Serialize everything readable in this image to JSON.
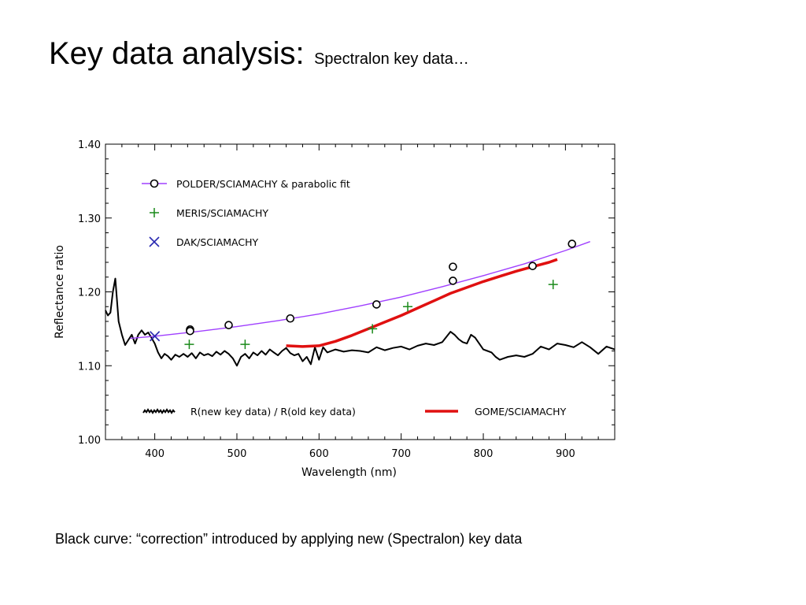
{
  "slide": {
    "title": "Key data analysis:",
    "subtitle": "Spectralon key data…",
    "caption": "Black curve: “correction” introduced by applying new (Spectralon) key data"
  },
  "chart_data": {
    "type": "scatter",
    "xlabel": "Wavelength (nm)",
    "ylabel": "Reflectance ratio",
    "xlim": [
      340,
      960
    ],
    "ylim": [
      1.0,
      1.4
    ],
    "x_ticks": [
      400,
      500,
      600,
      700,
      800,
      900
    ],
    "x_tick_labels": [
      "400",
      "500",
      "600",
      "700",
      "800",
      "900"
    ],
    "y_ticks": [
      1.0,
      1.1,
      1.2,
      1.3,
      1.4
    ],
    "y_tick_labels": [
      "1.00",
      "1.10",
      "1.20",
      "1.30",
      "1.40"
    ],
    "grid": false,
    "legend_position": "top-left and bottom",
    "series": [
      {
        "name": "POLDER/SCIAMACHY & parabolic fit",
        "kind": "points",
        "marker": "circle",
        "color": "#000000",
        "x": [
          443,
          443,
          490,
          565,
          670,
          763,
          763,
          860,
          908
        ],
        "y": [
          1.149,
          1.147,
          1.155,
          1.164,
          1.183,
          1.234,
          1.215,
          1.235,
          1.265
        ]
      },
      {
        "name": "POLDER/SCIAMACHY & parabolic fit",
        "kind": "fit-line",
        "color": "#a040ff",
        "x": [
          370,
          400,
          450,
          500,
          550,
          600,
          650,
          700,
          750,
          800,
          850,
          900,
          930
        ],
        "y": [
          1.137,
          1.14,
          1.146,
          1.153,
          1.161,
          1.17,
          1.181,
          1.193,
          1.207,
          1.222,
          1.238,
          1.256,
          1.268
        ]
      },
      {
        "name": "MERIS/SCIAMACHY",
        "kind": "points",
        "marker": "plus",
        "color": "#1a8a1a",
        "x": [
          442,
          510,
          665,
          708,
          885
        ],
        "y": [
          1.129,
          1.129,
          1.15,
          1.18,
          1.21
        ]
      },
      {
        "name": "DAK/SCIAMACHY",
        "kind": "points",
        "marker": "x",
        "color": "#2a2ab0",
        "x": [
          400
        ],
        "y": [
          1.14
        ]
      },
      {
        "name": "GOME/SCIAMACHY",
        "kind": "line",
        "color": "#e01010",
        "x": [
          560,
          580,
          600,
          620,
          640,
          660,
          680,
          700,
          720,
          740,
          760,
          780,
          800,
          820,
          840,
          860,
          880,
          890
        ],
        "y": [
          1.127,
          1.126,
          1.127,
          1.133,
          1.141,
          1.15,
          1.159,
          1.168,
          1.178,
          1.188,
          1.198,
          1.206,
          1.214,
          1.221,
          1.228,
          1.234,
          1.24,
          1.244
        ]
      },
      {
        "name": "R(new key data) / R(old key data)",
        "kind": "line",
        "color": "#000000",
        "x": [
          340,
          343,
          346,
          349,
          352,
          356,
          360,
          364,
          368,
          372,
          376,
          380,
          384,
          388,
          392,
          396,
          400,
          404,
          408,
          412,
          416,
          420,
          425,
          430,
          435,
          440,
          445,
          450,
          455,
          460,
          465,
          470,
          475,
          480,
          485,
          490,
          495,
          500,
          505,
          510,
          515,
          520,
          525,
          530,
          535,
          540,
          545,
          550,
          555,
          560,
          565,
          570,
          575,
          580,
          585,
          590,
          595,
          600,
          605,
          610,
          620,
          630,
          640,
          650,
          660,
          670,
          680,
          690,
          700,
          710,
          720,
          730,
          740,
          750,
          760,
          765,
          770,
          775,
          780,
          785,
          790,
          795,
          800,
          805,
          810,
          815,
          820,
          830,
          840,
          850,
          860,
          870,
          880,
          890,
          900,
          910,
          920,
          930,
          940,
          950,
          960
        ],
        "y": [
          1.175,
          1.168,
          1.172,
          1.2,
          1.218,
          1.16,
          1.142,
          1.128,
          1.135,
          1.142,
          1.13,
          1.142,
          1.148,
          1.142,
          1.145,
          1.138,
          1.13,
          1.118,
          1.11,
          1.116,
          1.113,
          1.108,
          1.115,
          1.112,
          1.116,
          1.112,
          1.117,
          1.11,
          1.118,
          1.114,
          1.116,
          1.113,
          1.119,
          1.115,
          1.12,
          1.116,
          1.11,
          1.1,
          1.112,
          1.116,
          1.11,
          1.118,
          1.114,
          1.12,
          1.115,
          1.122,
          1.118,
          1.114,
          1.12,
          1.124,
          1.117,
          1.114,
          1.116,
          1.106,
          1.112,
          1.102,
          1.125,
          1.108,
          1.125,
          1.118,
          1.122,
          1.119,
          1.121,
          1.12,
          1.118,
          1.125,
          1.121,
          1.124,
          1.126,
          1.122,
          1.127,
          1.13,
          1.128,
          1.132,
          1.146,
          1.142,
          1.136,
          1.132,
          1.13,
          1.142,
          1.138,
          1.13,
          1.122,
          1.12,
          1.118,
          1.112,
          1.108,
          1.112,
          1.114,
          1.112,
          1.116,
          1.126,
          1.122,
          1.13,
          1.128,
          1.125,
          1.132,
          1.125,
          1.116,
          1.126,
          1.122
        ]
      }
    ],
    "legend": [
      {
        "label": "POLDER/SCIAMACHY & parabolic fit",
        "symbol": "circle-line",
        "color": "#a040ff"
      },
      {
        "label": "MERIS/SCIAMACHY",
        "symbol": "plus",
        "color": "#1a8a1a"
      },
      {
        "label": "DAK/SCIAMACHY",
        "symbol": "x",
        "color": "#2a2ab0"
      },
      {
        "label": "R(new key data) / R(old key data)",
        "symbol": "wiggle-line",
        "color": "#000000"
      },
      {
        "label": "GOME/SCIAMACHY",
        "symbol": "line",
        "color": "#e01010"
      }
    ]
  }
}
